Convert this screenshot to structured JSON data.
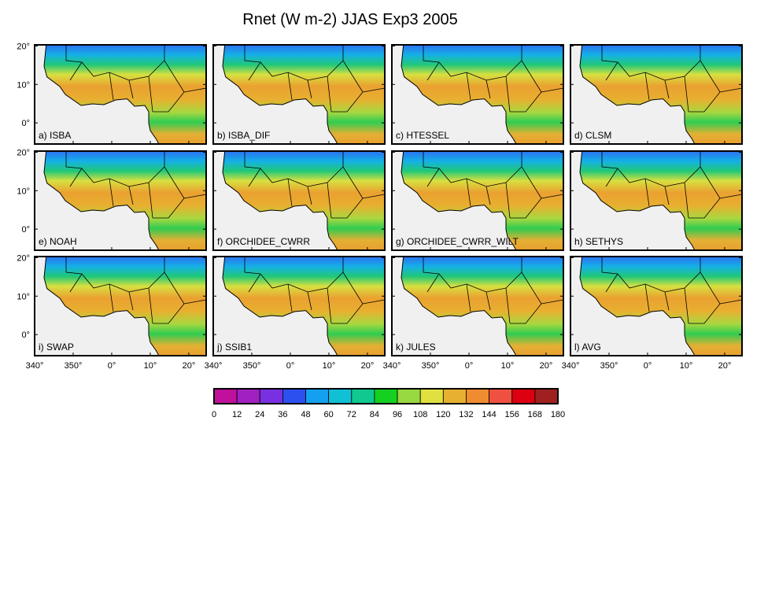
{
  "title": "Rnet (W m-2) JJAS Exp3 2005",
  "panels": [
    "a) ISBA",
    "b) ISBA_DIF",
    "c) HTESSEL",
    "d) CLSM",
    "e) NOAH",
    "f) ORCHIDEE_CWRR",
    "g) ORCHIDEE_CWRR_WILT",
    "h) SETHYS",
    "i) SWAP",
    "j) SSIB1",
    "k) JULES",
    "l) AVG"
  ],
  "lon_lim": [
    -20,
    24.5
  ],
  "lat_lim": [
    -5.5,
    20.3
  ],
  "lat_ticks": [
    {
      "value": 20,
      "label": "20°"
    },
    {
      "value": 10,
      "label": "10°"
    },
    {
      "value": 0,
      "label": "0°"
    }
  ],
  "lon_ticks": [
    {
      "value": -20,
      "label": "340°"
    },
    {
      "value": -10,
      "label": "350°"
    },
    {
      "value": 0,
      "label": "0°"
    },
    {
      "value": 10,
      "label": "10°"
    },
    {
      "value": 20,
      "label": "20°"
    }
  ],
  "colorbar": {
    "ticks": [
      0,
      12,
      24,
      36,
      48,
      60,
      72,
      84,
      96,
      108,
      120,
      132,
      144,
      156,
      168,
      180
    ],
    "colors": [
      "#c0109c",
      "#a020c0",
      "#7830e0",
      "#2c50f0",
      "#14a0f0",
      "#10c0d4",
      "#10c890",
      "#14d020",
      "#98d840",
      "#e0e040",
      "#e8b030",
      "#f08c30",
      "#f05040",
      "#dc0010",
      "#a02020"
    ]
  }
}
